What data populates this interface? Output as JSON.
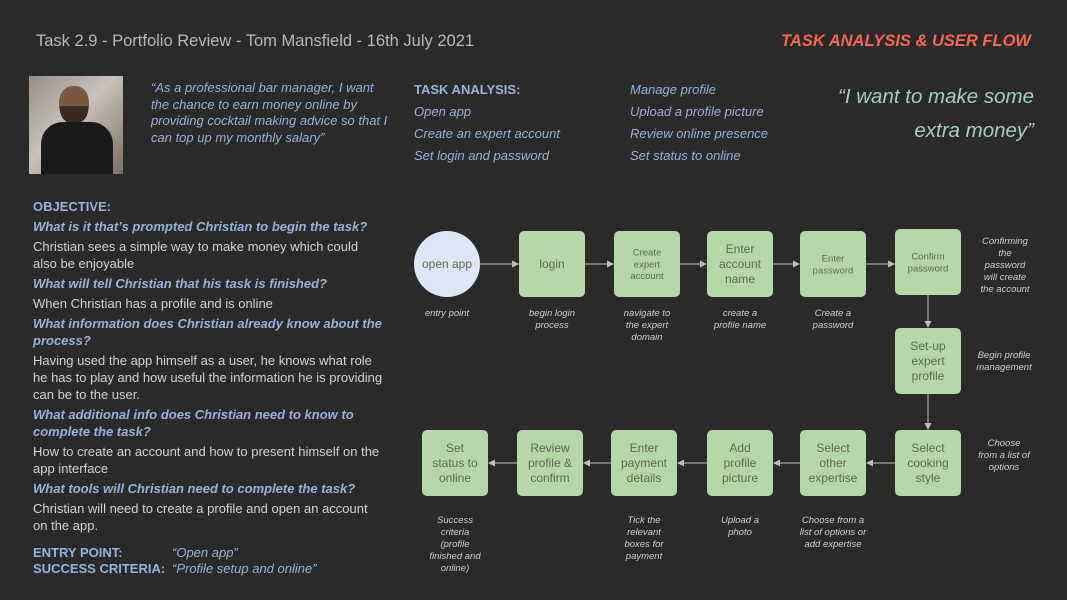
{
  "header": {
    "title": "Task 2.9 - Portfolio Review - Tom Mansfield - 16th July 2021",
    "section": "TASK ANALYSIS & USER FLOW"
  },
  "persona_quote": "“As a professional bar manager, I want the chance to earn money online by providing cocktail making advice so that I can top up my monthly salary”",
  "task_analysis": {
    "heading": "TASK ANALYSIS:",
    "col1": [
      "Open app",
      "Create an expert account",
      "Set login and password"
    ],
    "col2": [
      "Manage profile",
      "Upload a profile picture",
      "Review online presence",
      "Set status to online"
    ]
  },
  "big_quote": "“I want to make some extra money”",
  "objective": {
    "heading": "OBJECTIVE:",
    "items": [
      {
        "q": "What is it that’s prompted Christian to begin the task?",
        "a": "Christian sees a simple way to make money which could also be enjoyable"
      },
      {
        "q": "What will tell Christian that his task is finished?",
        "a": "When Christian has a profile and is online"
      },
      {
        "q": "What information does Christian already know about the process?",
        "a": "Having used the app himself as a user, he knows what role he has to play and how useful the information he is providing can be to the user."
      },
      {
        "q": "What additional info does Christian need to know to complete the task?",
        "a": "How to create an account and how to present himself on the app interface"
      },
      {
        "q": "What tools will Christian need to complete the task?",
        "a": "Christian will need to create a profile and open an account on the app."
      }
    ],
    "entry_label": "ENTRY POINT:",
    "entry_value": "“Open app”",
    "success_label": "SUCCESS CRITERIA:",
    "success_value": "“Profile setup and online”"
  },
  "flow": {
    "colors": {
      "node_fill": "#b5d7a8",
      "start_fill": "#dbe6f6",
      "arrow": "#bdbdbd",
      "node_text": "#5a6a4e"
    },
    "nodes": [
      {
        "id": "open",
        "label": [
          "open app"
        ],
        "note": [
          "entry point"
        ],
        "shape": "circle"
      },
      {
        "id": "login",
        "label": [
          "login"
        ],
        "note": [
          "begin login",
          "process"
        ]
      },
      {
        "id": "create",
        "label": [
          "Create",
          "expert",
          "account"
        ],
        "note": [
          "navigate to",
          "the expert",
          "domain"
        ]
      },
      {
        "id": "name",
        "label": [
          "Enter",
          "account",
          "name"
        ],
        "note": [
          "create a",
          "profile name"
        ]
      },
      {
        "id": "password",
        "label": [
          "Enter",
          "password"
        ],
        "note": [
          "Create a",
          "password"
        ]
      },
      {
        "id": "confirm",
        "label": [
          "Confirm",
          "password"
        ],
        "note": [
          "Confirming",
          "the",
          "password",
          "will create",
          "the account"
        ]
      },
      {
        "id": "setup",
        "label": [
          "Set-up",
          "expert",
          "profile"
        ],
        "note": [
          "Begin profile",
          "management"
        ]
      },
      {
        "id": "style",
        "label": [
          "Select",
          "cooking",
          "style"
        ],
        "note": [
          "Choose",
          "from a list of",
          "options"
        ]
      },
      {
        "id": "other",
        "label": [
          "Select",
          "other",
          "expertise"
        ],
        "note": [
          "Choose from a",
          "list of options or",
          "add expertise"
        ]
      },
      {
        "id": "picture",
        "label": [
          "Add",
          "profile",
          "picture"
        ],
        "note": [
          "Upload a",
          "photo"
        ]
      },
      {
        "id": "payment",
        "label": [
          "Enter",
          "payment",
          "details"
        ],
        "note": [
          "Tick the",
          "relevant",
          "boxes for",
          "payment"
        ]
      },
      {
        "id": "review",
        "label": [
          "Review",
          "profile &",
          "confirm"
        ],
        "note": []
      },
      {
        "id": "status",
        "label": [
          "Set",
          "status to",
          "online"
        ],
        "note": [
          "Success",
          "criteria",
          "(profile",
          "finished and",
          "online)"
        ]
      }
    ]
  }
}
